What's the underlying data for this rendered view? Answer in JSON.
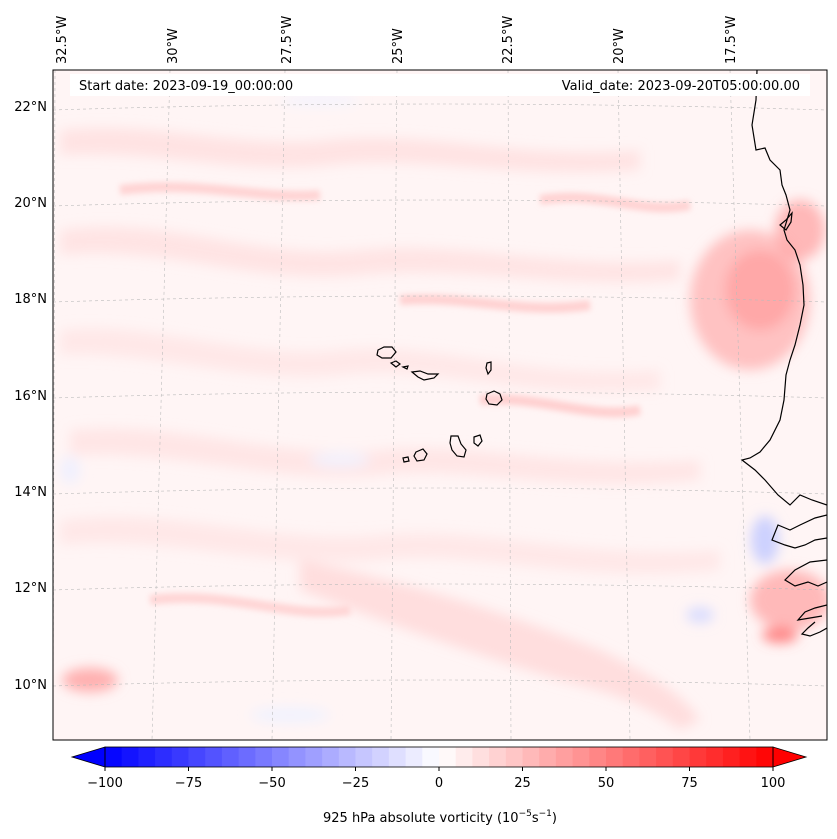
{
  "map": {
    "start_label": "Start date: 2023-09-19_00:00:00",
    "valid_label": "Valid_date: 2023-09-20T05:00:00.00",
    "lon_labels": [
      "32.5°W",
      "30°W",
      "27.5°W",
      "25°W",
      "22.5°W",
      "20°W",
      "17.5°W"
    ],
    "lat_labels": [
      "22°N",
      "20°N",
      "18°N",
      "16°N",
      "14°N",
      "12°N",
      "10°N"
    ]
  },
  "colorbar": {
    "ticks": [
      "−100",
      "−75",
      "−50",
      "−25",
      "0",
      "25",
      "50",
      "75",
      "100"
    ],
    "label_main": "925 hPa absolute vorticity (10",
    "label_exp1": "−5",
    "label_mid": "s",
    "label_exp2": "−1",
    "label_end": ")",
    "min": -100,
    "max": 100,
    "step": 5
  },
  "colors": {
    "negative": "#0000ff",
    "positive": "#ff0000",
    "neutral": "#ffffff",
    "coast": "#000000",
    "grid": "#bbbbbb"
  }
}
